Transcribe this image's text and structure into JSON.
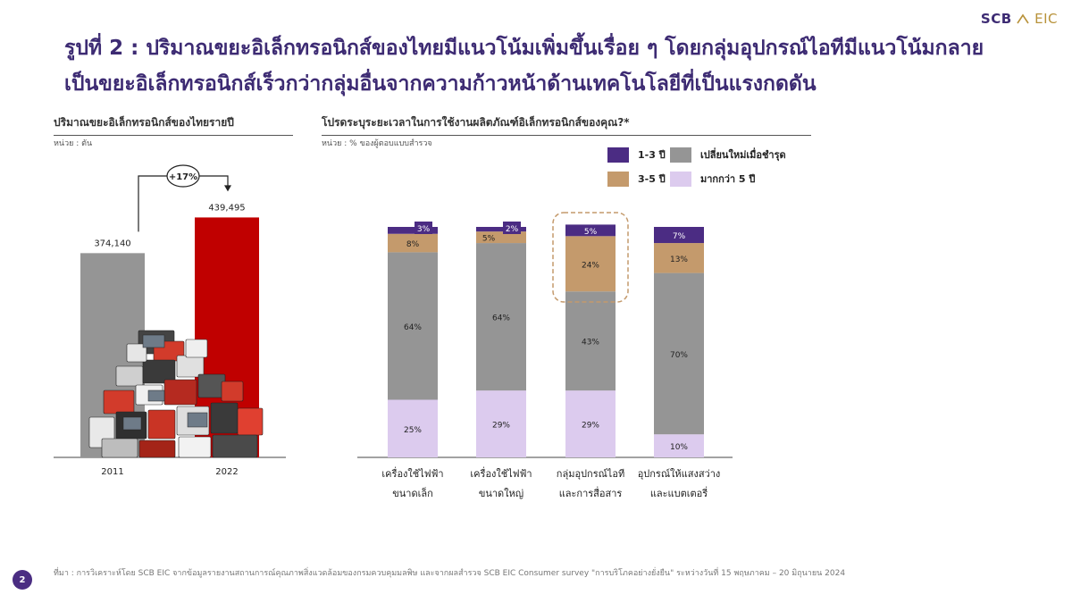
{
  "logo": {
    "scb": "SCB",
    "eic": "EIC"
  },
  "title": "รูปที่ 2 : ปริมาณขยะอิเล็กทรอนิกส์ของไทยมีแนวโน้มเพิ่มขึ้นเรื่อย ๆ โดยกลุ่มอุปกรณ์ไอทีมีแนวโน้มกลายเป็นขยะอิเล็กทรอนิกส์เร็วกว่ากลุ่มอื่นจากความก้าวหน้าด้านเทคโนโลยีที่เป็นแรงกดดัน",
  "colors": {
    "purple": "#4b2c83",
    "tan": "#c49a6c",
    "gray": "#959595",
    "lavender": "#dccbee",
    "red": "#c00000",
    "title": "#3d2b73"
  },
  "chart_data": [
    {
      "type": "bar",
      "title": "ปริมาณขยะอิเล็กทรอนิกส์ของไทยรายปี",
      "unit": "หน่วย : ตัน",
      "categories": [
        "2011",
        "2022"
      ],
      "values": [
        374140,
        439495
      ],
      "value_labels": [
        "374,140",
        "439,495"
      ],
      "growth_label": "+17%",
      "ylim": [
        0,
        450000
      ]
    },
    {
      "type": "bar",
      "stacked": true,
      "title": "โปรดระบุระยะเวลาในการใช้งานผลิตภัณฑ์อิเล็กทรอนิกส์ของคุณ?*",
      "unit": "หน่วย : % ของผู้ตอบแบบสำรวจ",
      "categories": [
        [
          "เครื่องใช้ไฟฟ้า",
          "ขนาดเล็ก"
        ],
        [
          "เครื่องใช้ไฟฟ้า",
          "ขนาดใหญ่"
        ],
        [
          "กลุ่มอุปกรณ์ไอที",
          "และการสื่อสาร"
        ],
        [
          "อุปกรณ์ให้แสงสว่าง",
          "และแบตเตอรี่"
        ]
      ],
      "series": [
        {
          "name": "มากกว่า 5 ปี",
          "values": [
            25,
            29,
            29,
            10
          ]
        },
        {
          "name": "เปลี่ยนใหม่เมื่อชำรุด",
          "values": [
            64,
            64,
            43,
            70
          ]
        },
        {
          "name": "3-5 ปี",
          "values": [
            8,
            5,
            24,
            13
          ]
        },
        {
          "name": "1-3 ปี",
          "values": [
            3,
            2,
            5,
            7
          ]
        }
      ],
      "highlight_category": 2,
      "legend_position": "top-right",
      "ylim": [
        0,
        100
      ]
    }
  ],
  "footnote": "ที่มา : การวิเคราะห์โดย SCB EIC จากข้อมูลรายงานสถานการณ์คุณภาพสิ่งแวดล้อมของกรมควบคุมมลพิษ และจากผลสำรวจ SCB EIC Consumer survey \"การบริโภคอย่างยั่งยืน\" ระหว่างวันที่ 15 พฤษภาคม – 20 มิถุนายน 2024",
  "page_number": "2"
}
